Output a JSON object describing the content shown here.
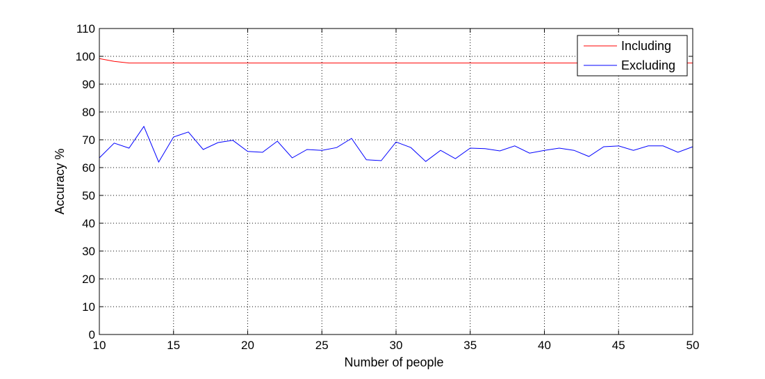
{
  "chart_data": {
    "type": "line",
    "title": "",
    "xlabel": "Number of people",
    "ylabel": "Accuracy %",
    "xlim": [
      10,
      50
    ],
    "ylim": [
      0,
      110
    ],
    "xticks": [
      10,
      15,
      20,
      25,
      30,
      35,
      40,
      45,
      50
    ],
    "yticks": [
      0,
      10,
      20,
      30,
      40,
      50,
      60,
      70,
      80,
      90,
      100,
      110
    ],
    "grid": true,
    "legend_position": "top-right",
    "x": [
      10,
      11,
      12,
      13,
      14,
      15,
      16,
      17,
      18,
      19,
      20,
      21,
      22,
      23,
      24,
      25,
      26,
      27,
      28,
      29,
      30,
      31,
      32,
      33,
      34,
      35,
      36,
      37,
      38,
      39,
      40,
      41,
      42,
      43,
      44,
      45,
      46,
      47,
      48,
      49,
      50
    ],
    "series": [
      {
        "name": "Including",
        "color": "#ff0000",
        "values": [
          99.2,
          98.2,
          97.6,
          97.6,
          97.6,
          97.6,
          97.6,
          97.6,
          97.6,
          97.6,
          97.6,
          97.6,
          97.6,
          97.6,
          97.6,
          97.6,
          97.6,
          97.6,
          97.6,
          97.6,
          97.6,
          97.6,
          97.6,
          97.6,
          97.6,
          97.6,
          97.6,
          97.6,
          97.6,
          97.6,
          97.6,
          97.6,
          97.6,
          97.6,
          97.6,
          97.6,
          97.6,
          97.6,
          97.6,
          97.6,
          97.6
        ]
      },
      {
        "name": "Excluding",
        "color": "#0000ff",
        "values": [
          63.5,
          68.8,
          67.0,
          74.8,
          62.0,
          71.0,
          72.8,
          66.5,
          69.0,
          69.8,
          65.8,
          65.5,
          69.5,
          63.5,
          66.5,
          66.2,
          67.2,
          70.5,
          62.8,
          62.5,
          69.2,
          67.2,
          62.2,
          66.2,
          63.2,
          67.0,
          66.8,
          66.0,
          67.8,
          65.2,
          66.2,
          67.0,
          66.2,
          64.0,
          67.5,
          67.8,
          66.2,
          67.8,
          67.8,
          65.5,
          67.5
        ]
      }
    ]
  }
}
